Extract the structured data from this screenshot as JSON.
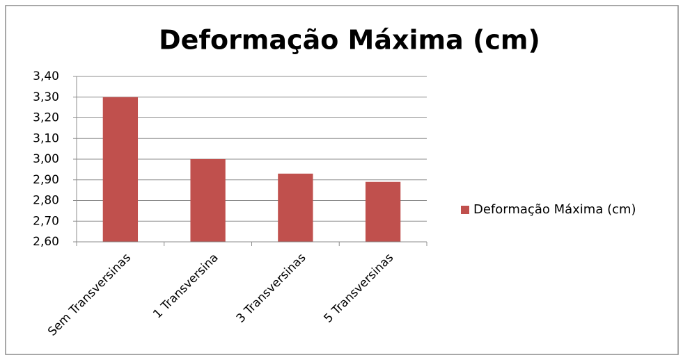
{
  "chart_data": {
    "type": "bar",
    "title": "Deformação Máxima (cm)",
    "categories": [
      "Sem Transversinas",
      "1 Transversina",
      "3 Transversinas",
      "5 Transversinas"
    ],
    "series": [
      {
        "name": "Deformação Máxima (cm)",
        "color": "#c0504d",
        "values": [
          3.3,
          3.0,
          2.93,
          2.89
        ]
      }
    ],
    "ylim": [
      2.6,
      3.4
    ],
    "yticks": [
      {
        "value": 2.6,
        "label": "2,60"
      },
      {
        "value": 2.7,
        "label": "2,70"
      },
      {
        "value": 2.8,
        "label": "2,80"
      },
      {
        "value": 2.9,
        "label": "2,90"
      },
      {
        "value": 3.0,
        "label": "3,00"
      },
      {
        "value": 3.1,
        "label": "3,10"
      },
      {
        "value": 3.2,
        "label": "3,20"
      },
      {
        "value": 3.3,
        "label": "3,30"
      },
      {
        "value": 3.4,
        "label": "3,40"
      }
    ],
    "grid": true,
    "legend": "right"
  }
}
